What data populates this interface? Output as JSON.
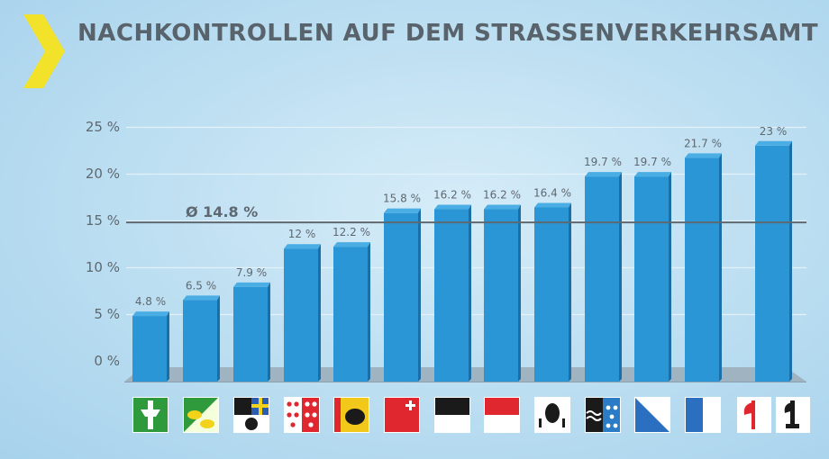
{
  "header": {
    "title": "NACHKONTROLLEN AUF DEM STRASSENVERKEHRSAMT"
  },
  "colors": {
    "bar": "#2b96d6",
    "bar_dark": "#1a6fa8",
    "accent": "#f2e22a",
    "floor": "#9fb3c0",
    "text": "#59636b"
  },
  "chart_data": {
    "type": "bar",
    "title": "NACHKONTROLLEN AUF DEM STRASSENVERKEHRSAMT",
    "xlabel": "",
    "ylabel": "",
    "ylim": [
      0,
      25
    ],
    "yticks": [
      0,
      5,
      10,
      15,
      20,
      25
    ],
    "ytick_labels": [
      "0 %",
      "5 %",
      "10 %",
      "15 %",
      "20 %",
      "25 %"
    ],
    "grid": true,
    "average": {
      "value": 14.8,
      "label": "Ø 14.8 %"
    },
    "categories": [
      "st-gallen-flag",
      "thurgau-flag",
      "graubuenden-flag",
      "wallis-flag",
      "bern-flag",
      "schwyz-flag",
      "appenzell-ar-flag",
      "solothurn-flag",
      "appenzell-ir-flag",
      "aargau-flag",
      "zuerich-flag",
      "luzern-flag",
      "basel-flags"
    ],
    "values": [
      4.8,
      6.5,
      7.9,
      12,
      12.2,
      15.8,
      16.2,
      16.2,
      16.4,
      19.7,
      19.7,
      21.7,
      23
    ],
    "value_labels": [
      "4.8 %",
      "6.5 %",
      "7.9 %",
      "12 %",
      "12.2 %",
      "15.8 %",
      "16.2 %",
      "16.2 %",
      "16.4 %",
      "19.7 %",
      "19.7 %",
      "21.7 %",
      "23 %"
    ]
  }
}
